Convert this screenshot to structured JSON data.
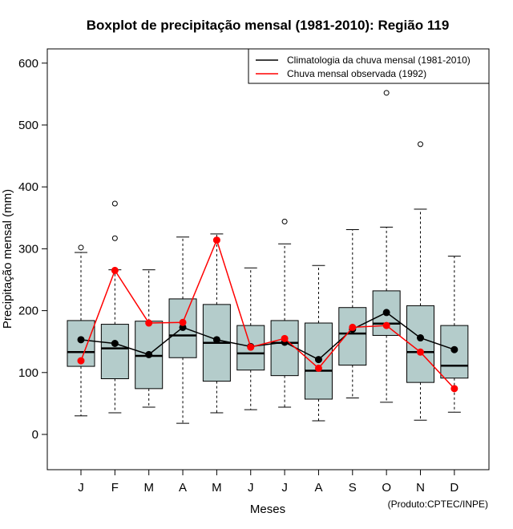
{
  "chart_data": {
    "type": "boxplot",
    "title": "Boxplot de precipitação mensal (1981-2010): Região 119",
    "xlabel": "Meses",
    "ylabel": "Precipitação mensal (mm)",
    "credit": "(Produto:CPTEC/INPE)",
    "ylim": [
      -57,
      623
    ],
    "yticks": [
      0,
      100,
      200,
      300,
      400,
      500,
      600
    ],
    "categories": [
      "J",
      "F",
      "M",
      "A",
      "M",
      "J",
      "J",
      "A",
      "S",
      "O",
      "N",
      "D"
    ],
    "boxes": [
      {
        "whisker_low": 30,
        "q1": 110,
        "median": 133,
        "q3": 184,
        "whisker_high": 294,
        "outliers": [
          302
        ]
      },
      {
        "whisker_low": 35,
        "q1": 90,
        "median": 139,
        "q3": 178,
        "whisker_high": 266,
        "outliers": [
          317,
          373
        ]
      },
      {
        "whisker_low": 44,
        "q1": 74,
        "median": 127,
        "q3": 183,
        "whisker_high": 266,
        "outliers": []
      },
      {
        "whisker_low": 18,
        "q1": 124,
        "median": 160,
        "q3": 219,
        "whisker_high": 319,
        "outliers": []
      },
      {
        "whisker_low": 35,
        "q1": 86,
        "median": 148,
        "q3": 210,
        "whisker_high": 324,
        "outliers": []
      },
      {
        "whisker_low": 40,
        "q1": 104,
        "median": 131,
        "q3": 176,
        "whisker_high": 269,
        "outliers": []
      },
      {
        "whisker_low": 44,
        "q1": 95,
        "median": 148,
        "q3": 184,
        "whisker_high": 308,
        "outliers": [
          344
        ]
      },
      {
        "whisker_low": 22,
        "q1": 57,
        "median": 103,
        "q3": 180,
        "whisker_high": 273,
        "outliers": []
      },
      {
        "whisker_low": 59,
        "q1": 112,
        "median": 163,
        "q3": 205,
        "whisker_high": 331,
        "outliers": []
      },
      {
        "whisker_low": 52,
        "q1": 160,
        "median": 179,
        "q3": 232,
        "whisker_high": 335,
        "outliers": [
          552
        ]
      },
      {
        "whisker_low": 23,
        "q1": 84,
        "median": 133,
        "q3": 208,
        "whisker_high": 364,
        "outliers": [
          469
        ]
      },
      {
        "whisker_low": 36,
        "q1": 91,
        "median": 111,
        "q3": 176,
        "whisker_high": 288,
        "outliers": []
      }
    ],
    "series": [
      {
        "name": "Climatologia da chuva mensal (1981-2010)",
        "color": "#000000",
        "values": [
          153,
          147,
          129,
          173,
          153,
          142,
          149,
          121,
          170,
          197,
          156,
          137
        ]
      },
      {
        "name": "Chuva mensal observada (1992)",
        "color": "#ff0000",
        "values": [
          119,
          265,
          180,
          181,
          314,
          141,
          155,
          107,
          173,
          176,
          133,
          74
        ]
      }
    ],
    "box_fill": "#b4cccb",
    "legend_position": "top-right"
  }
}
